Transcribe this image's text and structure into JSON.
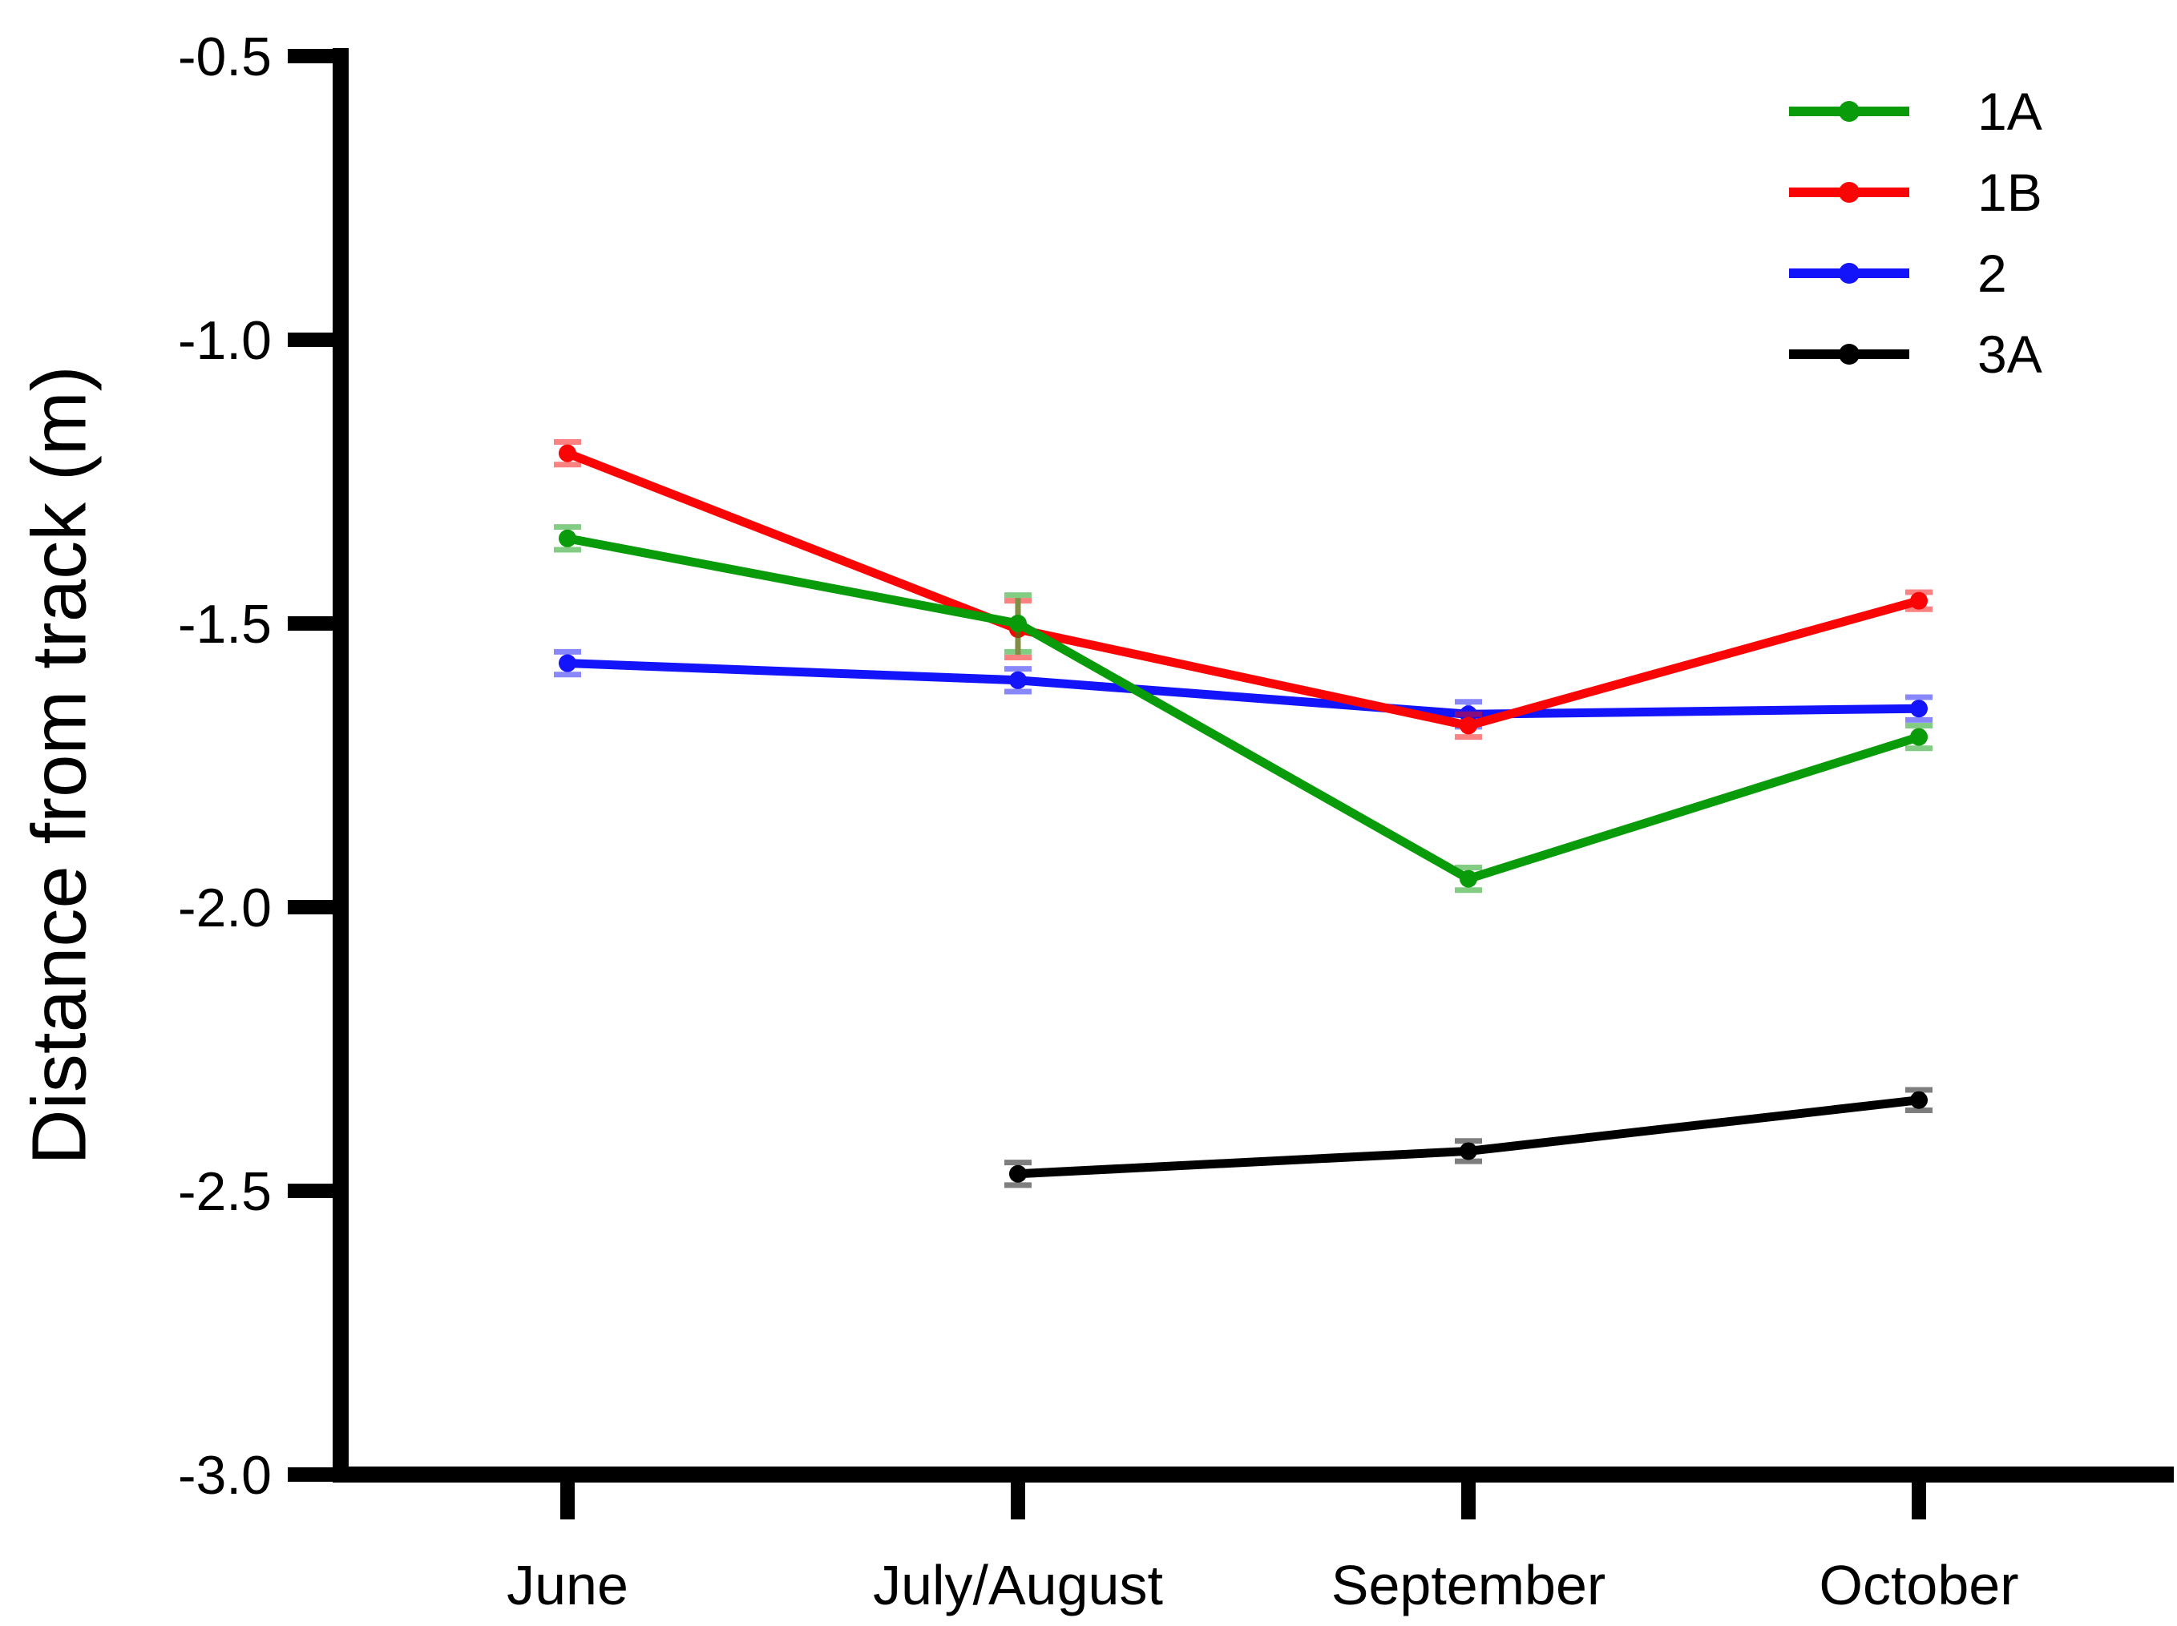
{
  "chart_data": {
    "type": "line",
    "title": "",
    "xlabel": "",
    "ylabel": "Distance from track (m)",
    "categories": [
      "June",
      "July/August",
      "September",
      "October"
    ],
    "ylim": [
      -3.0,
      -0.5
    ],
    "yticks": [
      -0.5,
      -1.0,
      -1.5,
      -2.0,
      -2.5,
      -3.0
    ],
    "grid": false,
    "legend_position": "top-right",
    "marker": "circle",
    "error_bars": true,
    "series": [
      {
        "name": "1A",
        "color": "#0a9b0a",
        "values": [
          -1.35,
          -1.5,
          -1.95,
          -1.7
        ],
        "errors": [
          0.02,
          0.05,
          0.02,
          0.02
        ]
      },
      {
        "name": "1B",
        "color": "#fa0505",
        "values": [
          -1.2,
          -1.51,
          -1.68,
          -1.46
        ],
        "errors": [
          0.02,
          0.05,
          0.02,
          0.015
        ]
      },
      {
        "name": "2",
        "color": "#1414fa",
        "values": [
          -1.57,
          -1.6,
          -1.66,
          -1.65
        ],
        "errors": [
          0.02,
          0.02,
          0.022,
          0.02
        ]
      },
      {
        "name": "3A",
        "color": "#000000",
        "values": [
          null,
          -2.47,
          -2.43,
          -2.34
        ],
        "errors": [
          null,
          0.02,
          0.018,
          0.018
        ]
      }
    ]
  }
}
